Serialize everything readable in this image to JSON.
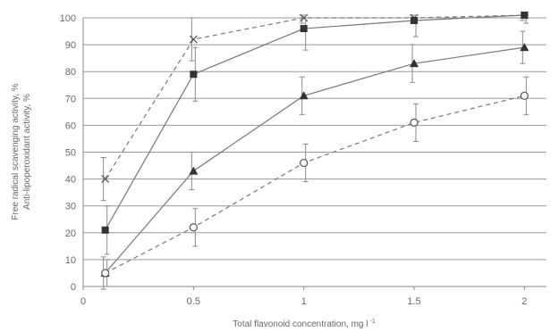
{
  "chart_data": {
    "type": "line",
    "title": "",
    "xlabel": "Total flavonoid concentration, mg l",
    "xlabel_superscript": "-1",
    "ylabel_lines": [
      "Free radical scavenging activity, %",
      "Anti-lipoperoxidant activity, %"
    ],
    "xlim": [
      0,
      2.1
    ],
    "ylim": [
      0,
      100
    ],
    "x_ticks": [
      0,
      0.5,
      1,
      1.5,
      2
    ],
    "x_tick_labels": [
      "0",
      "0.5",
      "1",
      "1.5",
      "2"
    ],
    "y_ticks": [
      0,
      10,
      20,
      30,
      40,
      50,
      60,
      70,
      80,
      90,
      100
    ],
    "y_tick_labels": [
      "0",
      "10",
      "20",
      "30",
      "40",
      "50",
      "60",
      "70",
      "80",
      "90",
      "100"
    ],
    "grid": "horizontal",
    "legend": "none",
    "x": [
      0.1,
      0.5,
      1,
      1.5,
      2
    ],
    "series": [
      {
        "marker": "x",
        "line_style": "dashed",
        "color": "#777777",
        "values": [
          40,
          92,
          100,
          100,
          101
        ],
        "errors": [
          8,
          8,
          2,
          2,
          2
        ]
      },
      {
        "marker": "square",
        "line_style": "solid",
        "color": "#777777",
        "values": [
          21,
          79,
          96,
          99,
          101
        ],
        "errors": [
          9,
          10,
          8,
          6,
          3
        ]
      },
      {
        "marker": "triangle",
        "line_style": "solid",
        "color": "#777777",
        "values": [
          5,
          43,
          71,
          83,
          89
        ],
        "errors": [
          6,
          7,
          7,
          7,
          6
        ]
      },
      {
        "marker": "circle",
        "line_style": "dashed",
        "color": "#777777",
        "values": [
          5,
          22,
          46,
          61,
          71
        ],
        "errors": [
          5,
          7,
          7,
          7,
          7
        ]
      }
    ]
  }
}
